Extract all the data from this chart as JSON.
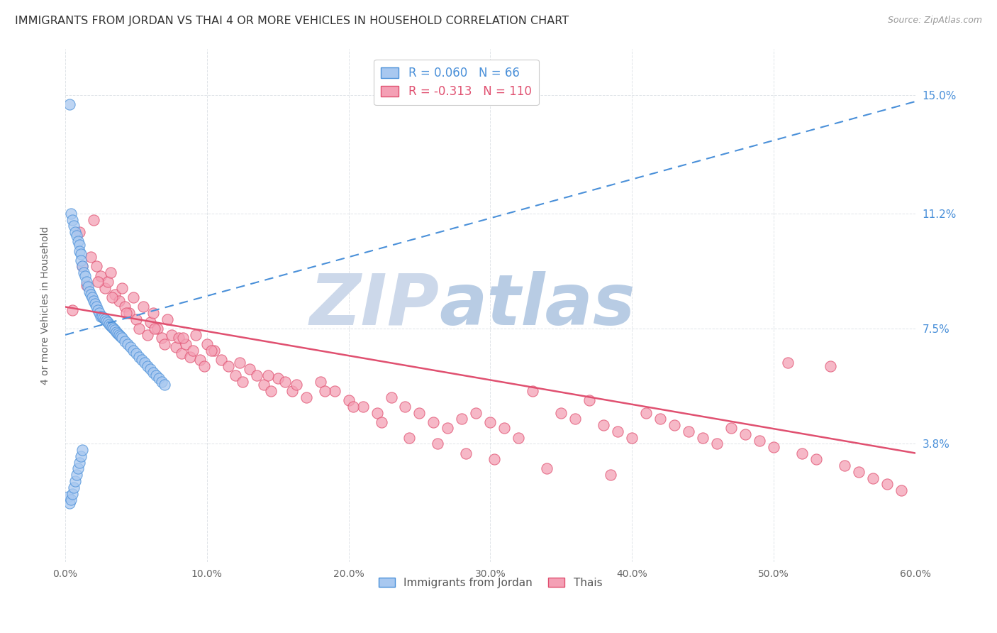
{
  "title": "IMMIGRANTS FROM JORDAN VS THAI 4 OR MORE VEHICLES IN HOUSEHOLD CORRELATION CHART",
  "source": "Source: ZipAtlas.com",
  "yaxis_label": "4 or more Vehicles in Household",
  "legend_jordan": "Immigrants from Jordan",
  "legend_thai": "Thais",
  "jordan_R": "0.060",
  "jordan_N": "66",
  "thai_R": "-0.313",
  "thai_N": "110",
  "jordan_color": "#a8c8f0",
  "thai_color": "#f4a0b5",
  "jordan_line_color": "#4a90d9",
  "thai_line_color": "#e05070",
  "background_color": "#ffffff",
  "grid_color": "#e0e4e8",
  "watermark_zip": "ZIP",
  "watermark_atlas": "atlas",
  "watermark_color": "#ccd8ea",
  "xmin": 0.0,
  "xmax": 60.0,
  "ymin": 0.0,
  "ymax": 16.5,
  "ytick_vals": [
    3.8,
    7.5,
    11.2,
    15.0
  ],
  "ytick_labels": [
    "3.8%",
    "7.5%",
    "11.2%",
    "15.0%"
  ],
  "xtick_vals": [
    0,
    10,
    20,
    30,
    40,
    50,
    60
  ],
  "xtick_labels": [
    "0.0%",
    "10.0%",
    "20.0%",
    "30.0%",
    "40.0%",
    "50.0%",
    "60.0%"
  ],
  "jordan_trend": [
    0.0,
    60.0,
    7.3,
    14.8
  ],
  "thai_trend": [
    0.0,
    60.0,
    8.2,
    3.5
  ],
  "jordan_x": [
    0.3,
    0.4,
    0.5,
    0.6,
    0.7,
    0.8,
    0.9,
    1.0,
    1.0,
    1.1,
    1.1,
    1.2,
    1.3,
    1.4,
    1.5,
    1.6,
    1.7,
    1.8,
    1.9,
    2.0,
    2.1,
    2.2,
    2.3,
    2.4,
    2.5,
    2.6,
    2.7,
    2.8,
    2.9,
    3.0,
    3.1,
    3.2,
    3.3,
    3.4,
    3.5,
    3.6,
    3.7,
    3.8,
    3.9,
    4.0,
    4.2,
    4.4,
    4.6,
    4.8,
    5.0,
    5.2,
    5.4,
    5.6,
    5.8,
    6.0,
    6.2,
    6.4,
    6.6,
    6.8,
    7.0,
    0.2,
    0.3,
    0.4,
    0.5,
    0.6,
    0.7,
    0.8,
    0.9,
    1.0,
    1.1,
    1.2
  ],
  "jordan_y": [
    14.7,
    11.2,
    11.0,
    10.8,
    10.6,
    10.5,
    10.3,
    10.2,
    10.0,
    9.9,
    9.7,
    9.5,
    9.3,
    9.2,
    9.0,
    8.85,
    8.7,
    8.6,
    8.5,
    8.4,
    8.3,
    8.2,
    8.1,
    8.0,
    7.9,
    7.9,
    7.85,
    7.8,
    7.75,
    7.7,
    7.65,
    7.6,
    7.55,
    7.5,
    7.45,
    7.4,
    7.35,
    7.3,
    7.25,
    7.2,
    7.1,
    7.0,
    6.9,
    6.8,
    6.7,
    6.6,
    6.5,
    6.4,
    6.3,
    6.2,
    6.1,
    6.0,
    5.9,
    5.8,
    5.7,
    2.1,
    1.9,
    2.0,
    2.2,
    2.4,
    2.6,
    2.8,
    3.0,
    3.2,
    3.4,
    3.6
  ],
  "thai_x": [
    0.5,
    1.0,
    1.5,
    1.8,
    2.0,
    2.2,
    2.5,
    2.8,
    3.0,
    3.2,
    3.5,
    3.8,
    4.0,
    4.2,
    4.5,
    4.8,
    5.0,
    5.2,
    5.5,
    5.8,
    6.0,
    6.2,
    6.5,
    6.8,
    7.0,
    7.2,
    7.5,
    7.8,
    8.0,
    8.2,
    8.5,
    8.8,
    9.0,
    9.2,
    9.5,
    9.8,
    10.0,
    10.5,
    11.0,
    11.5,
    12.0,
    12.5,
    13.0,
    13.5,
    14.0,
    14.5,
    15.0,
    15.5,
    16.0,
    17.0,
    18.0,
    19.0,
    20.0,
    21.0,
    22.0,
    23.0,
    24.0,
    25.0,
    26.0,
    27.0,
    28.0,
    29.0,
    30.0,
    31.0,
    32.0,
    33.0,
    35.0,
    36.0,
    37.0,
    38.0,
    39.0,
    40.0,
    41.0,
    42.0,
    43.0,
    44.0,
    45.0,
    46.0,
    47.0,
    48.0,
    49.0,
    50.0,
    51.0,
    52.0,
    53.0,
    54.0,
    55.0,
    56.0,
    57.0,
    58.0,
    59.0,
    1.2,
    2.3,
    3.3,
    4.3,
    6.3,
    8.3,
    10.3,
    12.3,
    14.3,
    16.3,
    18.3,
    20.3,
    22.3,
    24.3,
    26.3,
    28.3,
    30.3,
    34.0,
    38.5
  ],
  "thai_y": [
    8.1,
    10.6,
    8.9,
    9.8,
    11.0,
    9.5,
    9.2,
    8.8,
    9.0,
    9.3,
    8.6,
    8.4,
    8.8,
    8.2,
    8.0,
    8.5,
    7.8,
    7.5,
    8.2,
    7.3,
    7.7,
    8.0,
    7.5,
    7.2,
    7.0,
    7.8,
    7.3,
    6.9,
    7.2,
    6.7,
    7.0,
    6.6,
    6.8,
    7.3,
    6.5,
    6.3,
    7.0,
    6.8,
    6.5,
    6.3,
    6.0,
    5.8,
    6.2,
    6.0,
    5.7,
    5.5,
    5.9,
    5.8,
    5.5,
    5.3,
    5.8,
    5.5,
    5.2,
    5.0,
    4.8,
    5.3,
    5.0,
    4.8,
    4.5,
    4.3,
    4.6,
    4.8,
    4.5,
    4.3,
    4.0,
    5.5,
    4.8,
    4.6,
    5.2,
    4.4,
    4.2,
    4.0,
    4.8,
    4.6,
    4.4,
    4.2,
    4.0,
    3.8,
    4.3,
    4.1,
    3.9,
    3.7,
    6.4,
    3.5,
    3.3,
    6.3,
    3.1,
    2.9,
    2.7,
    2.5,
    2.3,
    9.5,
    9.0,
    8.5,
    8.0,
    7.5,
    7.2,
    6.8,
    6.4,
    6.0,
    5.7,
    5.5,
    5.0,
    4.5,
    4.0,
    3.8,
    3.5,
    3.3,
    3.0,
    2.8
  ]
}
